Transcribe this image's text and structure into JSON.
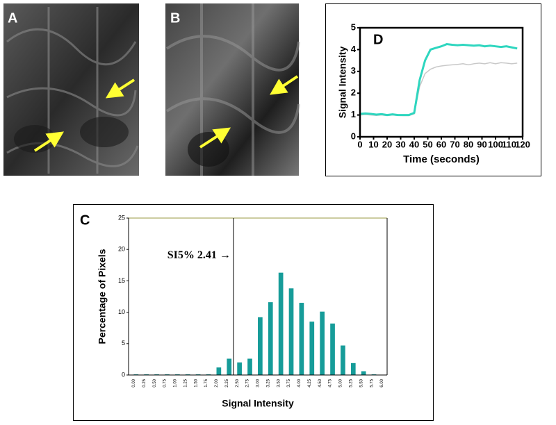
{
  "panels": {
    "a_label": "A",
    "b_label": "B"
  },
  "chart_data": [
    {
      "type": "line",
      "label": "D",
      "x_label": "Time (seconds)",
      "y_label": "Signal Intensity",
      "x": [
        0,
        4,
        8,
        12,
        16,
        20,
        24,
        28,
        32,
        36,
        40,
        44,
        48,
        52,
        56,
        60,
        64,
        68,
        72,
        76,
        80,
        84,
        88,
        92,
        96,
        100,
        104,
        108,
        112,
        116
      ],
      "series": [
        {
          "color": "#2ed6bf",
          "values": [
            1.05,
            1.07,
            1.05,
            1.02,
            1.04,
            1.0,
            1.03,
            1.0,
            1.0,
            1.0,
            1.1,
            2.6,
            3.5,
            4.0,
            4.08,
            4.15,
            4.25,
            4.22,
            4.2,
            4.22,
            4.2,
            4.18,
            4.2,
            4.15,
            4.18,
            4.15,
            4.12,
            4.15,
            4.1,
            4.05
          ]
        },
        {
          "color": "#c8c8c8",
          "values": [
            1.0,
            1.02,
            1.0,
            0.98,
            1.0,
            0.97,
            1.0,
            0.98,
            0.97,
            0.97,
            1.05,
            2.3,
            2.9,
            3.1,
            3.2,
            3.25,
            3.28,
            3.3,
            3.32,
            3.35,
            3.3,
            3.35,
            3.38,
            3.35,
            3.4,
            3.35,
            3.4,
            3.38,
            3.35,
            3.38
          ]
        }
      ],
      "xlim": [
        0,
        120
      ],
      "xticks": [
        0,
        10,
        20,
        30,
        40,
        50,
        60,
        70,
        80,
        90,
        100,
        110,
        120
      ],
      "ylim": [
        0,
        5
      ],
      "yticks": [
        0,
        1,
        2,
        3,
        4,
        5
      ]
    },
    {
      "type": "bar",
      "label": "C",
      "x_label": "Signal Intensity",
      "y_label": "Percentage of Pixels",
      "annotation": "SI5% 2.41 →",
      "marker_x": 2.41,
      "categories": [
        "0.00",
        "0.25",
        "0.50",
        "0.75",
        "1.00",
        "1.25",
        "1.50",
        "1.75",
        "2.00",
        "2.25",
        "2.50",
        "2.75",
        "3.00",
        "3.25",
        "3.50",
        "3.75",
        "4.00",
        "4.25",
        "4.50",
        "4.75",
        "5.00",
        "5.25",
        "5.50",
        "5.75",
        "6.00"
      ],
      "values": [
        0.1,
        0.1,
        0.1,
        0.1,
        0.1,
        0.1,
        0.1,
        0.1,
        1.2,
        2.6,
        2.0,
        2.6,
        9.2,
        11.6,
        16.3,
        13.8,
        11.5,
        8.5,
        10.1,
        8.2,
        4.7,
        1.9,
        0.6,
        0.1,
        0
      ],
      "color": "#169c99",
      "ylim": [
        0,
        25
      ],
      "yticks": [
        0,
        5,
        10,
        15,
        20,
        25
      ]
    }
  ]
}
